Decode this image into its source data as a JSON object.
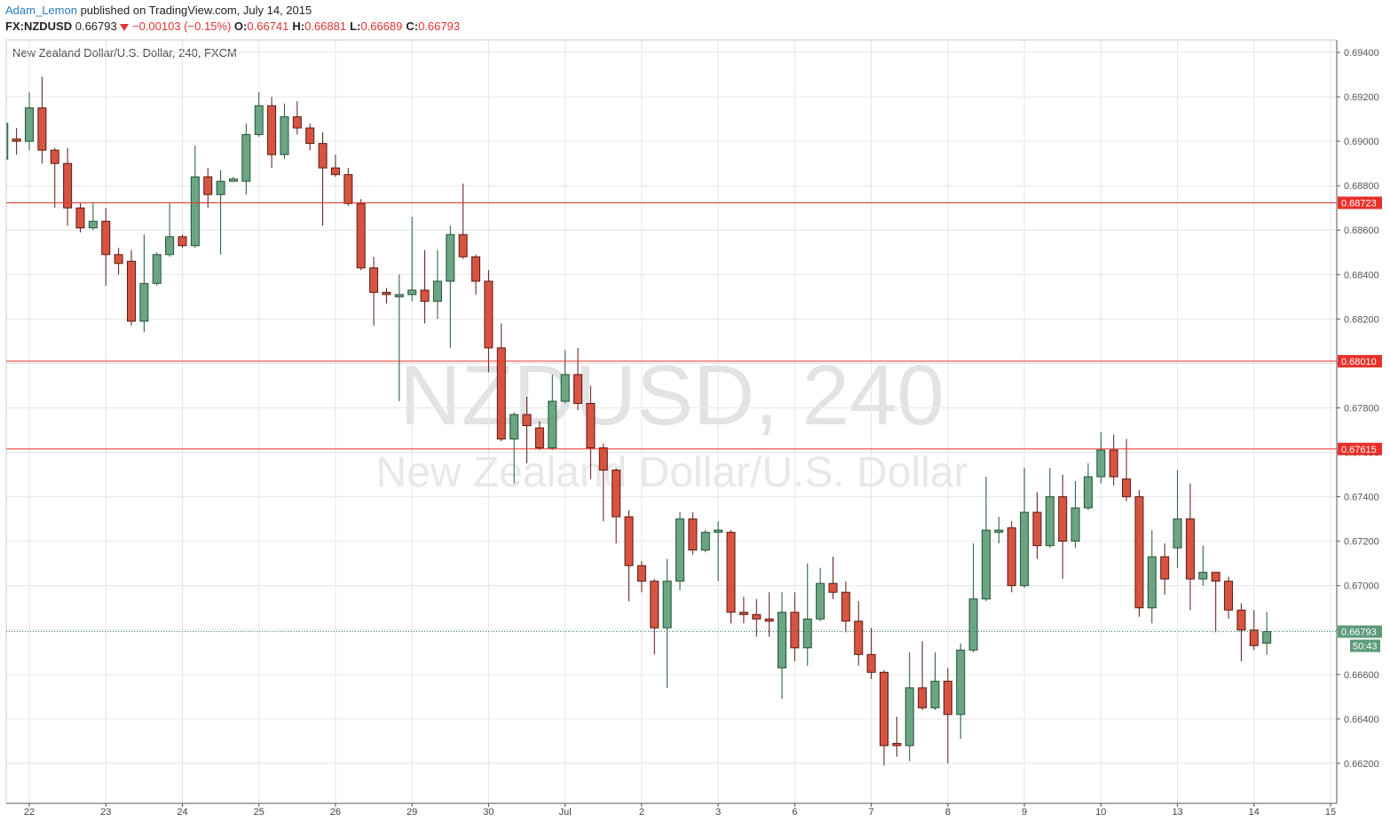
{
  "chart_data": {
    "type": "candlestick",
    "author": "Adam_Lemon",
    "published": "published on TradingView.com, July 14, 2015",
    "symbol": "FX:NZDUSD",
    "last": 0.66793,
    "change": "−0.00103 (−0.15%)",
    "quote_fields": [
      {
        "label": "O:",
        "value": 0.66741
      },
      {
        "label": "H:",
        "value": 0.66881
      },
      {
        "label": "L:",
        "value": 0.66689
      },
      {
        "label": "C:",
        "value": 0.66793
      }
    ],
    "title": "New Zealand Dollar/U.S. Dollar, 240, FXCM",
    "watermark_symbol": "NZDUSD, 240",
    "watermark_name": "New Zealand Dollar/U.S. Dollar",
    "up_color": "#6ba583",
    "up_border": "#225437",
    "down_color": "#d75442",
    "down_border": "#5b1a13",
    "grid": true,
    "categories": [
      null,
      null,
      "22",
      null,
      null,
      null,
      null,
      null,
      "23",
      null,
      null,
      null,
      null,
      null,
      "24",
      null,
      null,
      null,
      null,
      null,
      "25",
      null,
      null,
      null,
      null,
      null,
      "26",
      null,
      null,
      null,
      null,
      null,
      "29",
      null,
      null,
      null,
      null,
      null,
      "30",
      null,
      null,
      null,
      null,
      null,
      "Jul",
      null,
      null,
      null,
      null,
      null,
      "2",
      null,
      null,
      null,
      null,
      null,
      "3",
      null,
      null,
      null,
      null,
      null,
      "6",
      null,
      null,
      null,
      null,
      null,
      "7",
      null,
      null,
      null,
      null,
      null,
      "8",
      null,
      null,
      null,
      null,
      null,
      "9",
      null,
      null,
      null,
      null,
      null,
      "10",
      null,
      null,
      null,
      null,
      null,
      "13",
      null,
      null,
      null,
      null,
      null,
      "14",
      null,
      null,
      null,
      null,
      null,
      "15"
    ],
    "open": [
      0.6892,
      0.6901,
      0.69,
      0.6915,
      0.6896,
      0.689,
      0.687,
      0.6861,
      0.6864,
      0.6849,
      0.6846,
      0.6819,
      0.6836,
      0.6849,
      0.6857,
      0.6853,
      0.6884,
      0.6876,
      0.6882,
      0.6882,
      0.6903,
      0.6916,
      0.6894,
      0.6911,
      0.6906,
      0.6899,
      0.6888,
      0.6885,
      0.6872,
      0.6843,
      0.6832,
      0.683,
      0.6831,
      0.6833,
      0.6828,
      0.6837,
      0.6858,
      0.6848,
      0.6837,
      0.6807,
      0.6766,
      0.6777,
      0.6771,
      0.6762,
      0.6783,
      0.6795,
      0.6782,
      0.6762,
      0.6752,
      0.6731,
      0.6709,
      0.6702,
      0.6681,
      0.6702,
      0.673,
      0.6716,
      0.6724,
      0.6724,
      0.6688,
      0.6687,
      0.6685,
      0.6663,
      0.6688,
      0.6672,
      0.6685,
      0.6701,
      0.6697,
      0.6684,
      0.6669,
      0.6661,
      0.6629,
      0.6628,
      0.6654,
      0.6645,
      0.6657,
      0.6642,
      0.6671,
      0.6694,
      0.6724,
      0.6726,
      0.67,
      0.6733,
      0.6718,
      0.674,
      0.672,
      0.6735,
      0.6749,
      0.6761,
      0.6748,
      0.674,
      0.669,
      0.6713,
      0.6717,
      0.673,
      0.6703,
      0.6706,
      0.6702,
      0.6689,
      0.668,
      0.66741,
      null,
      null,
      null,
      null,
      null
    ],
    "high": [
      0.6912,
      0.6906,
      0.6922,
      0.6929,
      0.6897,
      0.6897,
      0.6872,
      0.6872,
      0.687,
      0.6852,
      0.6851,
      0.6858,
      0.685,
      0.6872,
      0.6858,
      0.6898,
      0.6888,
      0.6887,
      0.6884,
      0.6908,
      0.6922,
      0.692,
      0.6917,
      0.6918,
      0.6908,
      0.6904,
      0.6894,
      0.6888,
      0.6874,
      0.6848,
      0.6834,
      0.684,
      0.6866,
      0.6851,
      0.6851,
      0.6862,
      0.6881,
      0.6849,
      0.6842,
      0.6818,
      0.6778,
      0.6785,
      0.6774,
      0.6795,
      0.6806,
      0.6807,
      0.679,
      0.6764,
      0.6753,
      0.6734,
      0.6711,
      0.6703,
      0.6712,
      0.6733,
      0.6733,
      0.6725,
      0.6729,
      0.6725,
      0.6695,
      0.6694,
      0.6697,
      0.6697,
      0.6697,
      0.671,
      0.6708,
      0.6713,
      0.6702,
      0.6693,
      0.6681,
      0.6662,
      0.6641,
      0.667,
      0.6675,
      0.667,
      0.6663,
      0.6674,
      0.6719,
      0.6749,
      0.6731,
      0.6729,
      0.6753,
      0.6742,
      0.6753,
      0.675,
      0.6747,
      0.6755,
      0.6769,
      0.6768,
      0.6766,
      0.6743,
      0.6725,
      0.6719,
      0.6752,
      0.6746,
      0.6718,
      0.6706,
      0.6704,
      0.6692,
      0.6689,
      0.66881,
      null,
      null,
      null,
      null,
      null
    ],
    "low": [
      0.689,
      0.6894,
      0.6896,
      0.689,
      0.687,
      0.6862,
      0.6859,
      0.686,
      0.6835,
      0.684,
      0.6817,
      0.6814,
      0.6835,
      0.6848,
      0.6852,
      0.6852,
      0.687,
      0.6849,
      0.6882,
      0.6876,
      0.6902,
      0.6888,
      0.6892,
      0.6903,
      0.6896,
      0.6862,
      0.6884,
      0.6871,
      0.6842,
      0.6817,
      0.6827,
      0.6783,
      0.6828,
      0.6818,
      0.682,
      0.6807,
      0.6847,
      0.6831,
      0.6796,
      0.6765,
      0.6746,
      0.6755,
      0.6761,
      0.6761,
      0.6782,
      0.6779,
      0.6748,
      0.6729,
      0.6719,
      0.6693,
      0.6697,
      0.6669,
      0.6654,
      0.6698,
      0.6714,
      0.6715,
      0.6702,
      0.6683,
      0.6683,
      0.6677,
      0.6677,
      0.6649,
      0.6666,
      0.6664,
      0.6684,
      0.6694,
      0.6679,
      0.6664,
      0.6658,
      0.6619,
      0.6623,
      0.6621,
      0.6644,
      0.6644,
      0.662,
      0.6631,
      0.667,
      0.6693,
      0.6719,
      0.6697,
      0.6699,
      0.6712,
      0.6717,
      0.6703,
      0.6717,
      0.6734,
      0.6746,
      0.6745,
      0.6738,
      0.6686,
      0.6683,
      0.6696,
      0.6708,
      0.6689,
      0.67,
      0.6679,
      0.6685,
      0.6666,
      0.6671,
      0.66689,
      null,
      null,
      null,
      null,
      null
    ],
    "close": [
      0.6908,
      0.69,
      0.6915,
      0.6896,
      0.689,
      0.687,
      0.6861,
      0.6864,
      0.6849,
      0.6845,
      0.6819,
      0.6836,
      0.6849,
      0.6857,
      0.6853,
      0.6884,
      0.6876,
      0.6882,
      0.6883,
      0.6903,
      0.6916,
      0.6894,
      0.6911,
      0.6906,
      0.6899,
      0.6888,
      0.6885,
      0.6872,
      0.6843,
      0.6832,
      0.6831,
      0.6831,
      0.6833,
      0.6828,
      0.6837,
      0.6858,
      0.6848,
      0.6837,
      0.6807,
      0.6766,
      0.6777,
      0.6772,
      0.6762,
      0.6783,
      0.6795,
      0.6782,
      0.6762,
      0.6752,
      0.6731,
      0.6709,
      0.6702,
      0.6681,
      0.6702,
      0.673,
      0.6716,
      0.6724,
      0.6725,
      0.6688,
      0.6687,
      0.6685,
      0.6684,
      0.6688,
      0.6672,
      0.6685,
      0.6701,
      0.6697,
      0.6684,
      0.6669,
      0.6661,
      0.6628,
      0.6628,
      0.6654,
      0.6645,
      0.6657,
      0.6642,
      0.6671,
      0.6694,
      0.6725,
      0.6725,
      0.67,
      0.6733,
      0.6718,
      0.674,
      0.672,
      0.6735,
      0.6749,
      0.6761,
      0.6749,
      0.674,
      0.669,
      0.6713,
      0.6703,
      0.673,
      0.6703,
      0.6706,
      0.6702,
      0.6689,
      0.668,
      0.6673,
      0.66793,
      null,
      null,
      null,
      null,
      null
    ],
    "ylim": [
      0.6602,
      0.69456
    ],
    "yticks": [
      {
        "value": 0.662,
        "label": "0.66200"
      },
      {
        "value": 0.664,
        "label": "0.66400"
      },
      {
        "value": 0.666,
        "label": "0.66600"
      },
      {
        "value": 0.668,
        "label": "0.66800"
      },
      {
        "value": 0.67,
        "label": "0.67000"
      },
      {
        "value": 0.672,
        "label": "0.67200"
      },
      {
        "value": 0.674,
        "label": "0.67400"
      },
      {
        "value": 0.676,
        "label": "0.67600"
      },
      {
        "value": 0.678,
        "label": "0.67800"
      },
      {
        "value": 0.68,
        "label": "0.68000"
      },
      {
        "value": 0.682,
        "label": "0.68200"
      },
      {
        "value": 0.684,
        "label": "0.68400"
      },
      {
        "value": 0.686,
        "label": "0.68600"
      },
      {
        "value": 0.688,
        "label": "0.68800"
      },
      {
        "value": 0.69,
        "label": "0.69000"
      },
      {
        "value": 0.692,
        "label": "0.69200"
      },
      {
        "value": 0.694,
        "label": "0.69400"
      }
    ],
    "levels": [
      0.68723,
      {
        "value": 0.6801,
        "label": "0.68010"
      },
      0.67615
    ],
    "level_color": "#e8302a",
    "last_price": 0.66793,
    "countdown": "50:43"
  }
}
